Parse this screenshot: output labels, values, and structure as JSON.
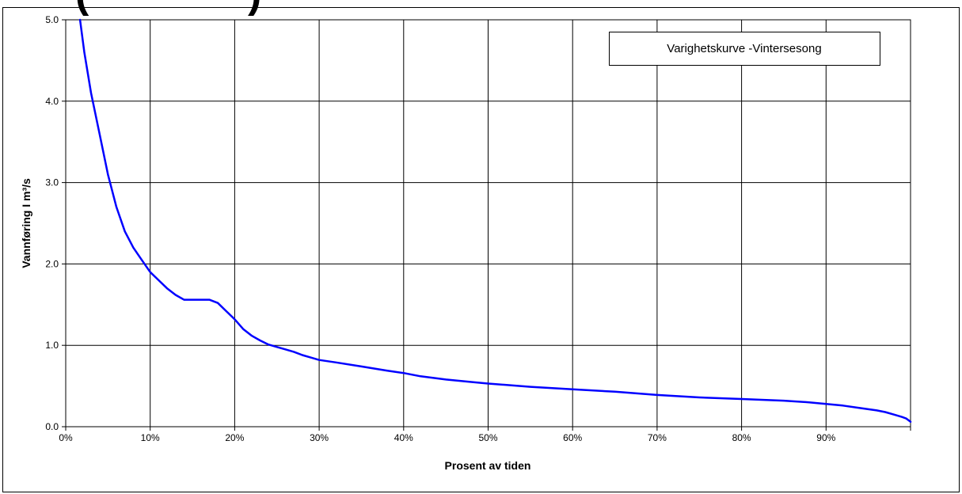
{
  "chart_data": {
    "type": "line",
    "title": "",
    "xlabel": "Prosent av tiden",
    "ylabel": "Vannføring I m³/s",
    "xlim": [
      0,
      100
    ],
    "ylim": [
      0,
      5
    ],
    "grid": true,
    "x_ticks": [
      "0%",
      "10%",
      "20%",
      "30%",
      "40%",
      "50%",
      "60%",
      "70%",
      "80%",
      "90%"
    ],
    "y_ticks": [
      "0.0",
      "1.0",
      "2.0",
      "3.0",
      "4.0",
      "5.0"
    ],
    "legend": {
      "text": "Varighetskurve -Vintersesong",
      "position": "top-right"
    },
    "series": [
      {
        "color": "#0000ff",
        "x": [
          1.7,
          2.2,
          3,
          4,
          5,
          6,
          7,
          8,
          9,
          10,
          11,
          12,
          13,
          14,
          15,
          16,
          17,
          18,
          19,
          20,
          21,
          22,
          23,
          24,
          25,
          26,
          27,
          28,
          29,
          30,
          32,
          35,
          38,
          40,
          42,
          45,
          48,
          50,
          55,
          60,
          65,
          70,
          75,
          80,
          85,
          88,
          90,
          92,
          94,
          96,
          97,
          98,
          99,
          99.5,
          100
        ],
        "y": [
          5.0,
          4.6,
          4.1,
          3.6,
          3.1,
          2.7,
          2.4,
          2.2,
          2.05,
          1.9,
          1.8,
          1.7,
          1.62,
          1.56,
          1.56,
          1.56,
          1.56,
          1.52,
          1.42,
          1.32,
          1.2,
          1.12,
          1.06,
          1.01,
          0.98,
          0.95,
          0.92,
          0.88,
          0.85,
          0.82,
          0.79,
          0.74,
          0.69,
          0.66,
          0.62,
          0.58,
          0.55,
          0.53,
          0.49,
          0.46,
          0.43,
          0.39,
          0.36,
          0.34,
          0.32,
          0.3,
          0.28,
          0.26,
          0.23,
          0.2,
          0.18,
          0.15,
          0.12,
          0.1,
          0.06
        ]
      }
    ]
  },
  "page": {
    "top_fragment_left": "(",
    "top_fragment_right": ")"
  }
}
